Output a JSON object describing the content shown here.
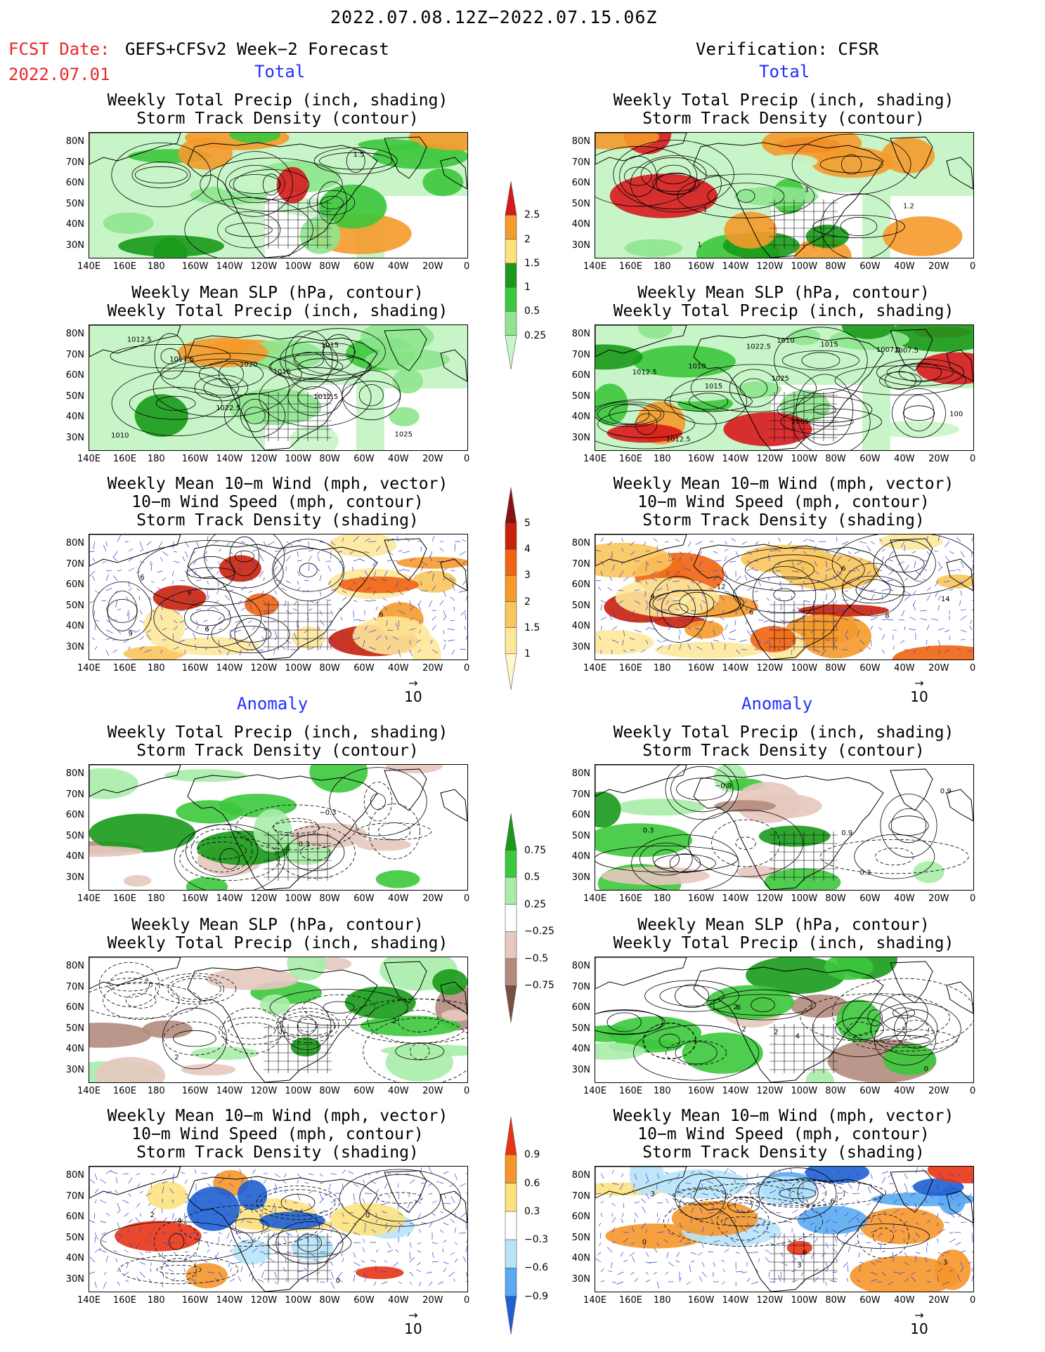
{
  "header": {
    "period": "2022.07.08.12Z−2022.07.15.06Z",
    "fcst_label": "FCST Date:",
    "fcst_product": "GEFS+CFSv2 Week−2 Forecast",
    "fcst_date": "2022.07.01",
    "verification": "Verification: CFSR"
  },
  "sections": {
    "total": "Total",
    "anomaly": "Anomaly"
  },
  "panel_titles": {
    "precip_storm": [
      "Weekly Total Precip (inch, shading)",
      "Storm Track Density (contour)"
    ],
    "slp_precip": [
      "Weekly Mean SLP (hPa, contour)",
      "Weekly Total Precip (inch, shading)"
    ],
    "wind_storm": [
      "Weekly Mean 10−m Wind (mph, vector)",
      "10−m Wind Speed (mph, contour)",
      "Storm Track Density (shading)"
    ]
  },
  "axes": {
    "lat_ticks": [
      "80N",
      "70N",
      "60N",
      "50N",
      "40N",
      "30N"
    ],
    "lon_ticks": [
      "140E",
      "160E",
      "180",
      "160W",
      "140W",
      "120W",
      "100W",
      "80W",
      "60W",
      "40W",
      "20W",
      "0"
    ]
  },
  "vector_reference": "10",
  "colorbars": {
    "precip_total": {
      "labels": [
        "2.5",
        "2",
        "1.5",
        "1",
        "0.5",
        "0.25"
      ],
      "colors": [
        "#d7191c",
        "#f59a2b",
        "#fde27e",
        "#1a9a1a",
        "#3cc83c",
        "#8ee58e",
        "#c8f5c8"
      ]
    },
    "storm_total": {
      "labels": [
        "5",
        "4",
        "3",
        "2",
        "1.5",
        "1"
      ],
      "colors": [
        "#8b0f0f",
        "#c8200a",
        "#f06412",
        "#f59a2b",
        "#fac55a",
        "#fde89a",
        "#fff7c8"
      ]
    },
    "precip_anom": {
      "labels": [
        "0.75",
        "0.5",
        "0.25",
        "−0.25",
        "−0.5",
        "−0.75"
      ],
      "colors": [
        "#1a9a1a",
        "#3cc83c",
        "#a8eca8",
        "#ffffff",
        "#e6c8be",
        "#b48c7e",
        "#7a4e42"
      ]
    },
    "storm_anom": {
      "labels": [
        "0.9",
        "0.6",
        "0.3",
        "−0.3",
        "−0.6",
        "−0.9"
      ],
      "colors": [
        "#e83414",
        "#f5962a",
        "#fde27e",
        "#ffffff",
        "#b8e4f8",
        "#5aaaf0",
        "#1e5fd2"
      ]
    }
  },
  "contour_labels": {
    "fc_precip_total": [
      "1.5"
    ],
    "vf_precip_total": [
      "1",
      "1",
      "1.2",
      "3"
    ],
    "fc_slp_total": [
      "1010",
      "1015",
      "1017.5",
      "1020",
      "1012.5",
      "1015",
      "1022.5",
      "1012.5",
      "1025"
    ],
    "vf_slp_total": [
      "1005",
      "1007.5",
      "1010",
      "1015",
      "1012.5",
      "1010",
      "1007.5",
      "1012.5",
      "1015",
      "1022.5",
      "1025",
      "100"
    ],
    "fc_wind_total": [
      "6",
      "9",
      "6",
      "6",
      "9"
    ],
    "vf_wind_total": [
      "8",
      "6",
      "4",
      "14",
      "6",
      "12"
    ],
    "fc_precip_anom": [
      "0.3",
      "−0.3"
    ],
    "vf_precip_anom": [
      "0.3",
      "0.9",
      "0.3",
      "0.9",
      "−0.9"
    ],
    "fc_slp_anom": [
      "2",
      "2"
    ],
    "vf_slp_anom": [
      "6",
      "4",
      "2",
      "2",
      "0",
      "2"
    ],
    "fc_wind_anom": [
      "2",
      "0",
      "0",
      "4"
    ],
    "vf_wind_anom": [
      "6",
      "3",
      "3",
      "0",
      "3",
      "6"
    ]
  }
}
